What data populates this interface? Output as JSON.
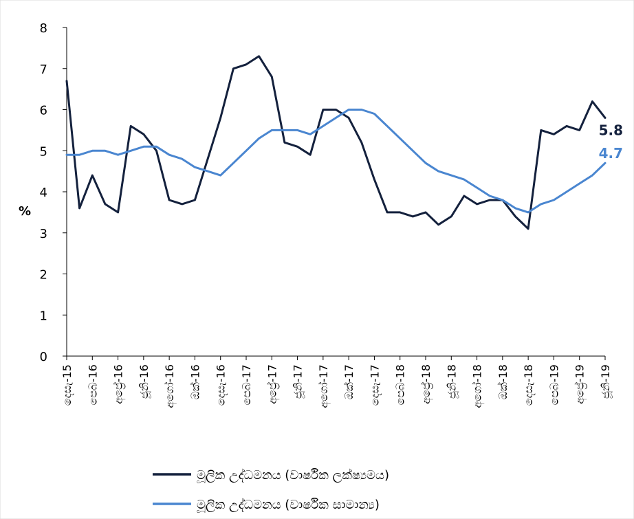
{
  "chart_data": {
    "type": "line",
    "title": "",
    "xlabel": "",
    "ylabel": "%",
    "ylim": [
      0,
      8
    ],
    "yticks": [
      0,
      1,
      2,
      3,
      4,
      5,
      6,
      7,
      8
    ],
    "grid": false,
    "legend_position": "bottom",
    "x_tick_labels": [
      "දෙසැ-15",
      "පෙබ-16",
      "අප්‍රේ-16",
      "ජූනි-16",
      "අගෝ-16",
      "ඔක්-16",
      "දෙසැ-16",
      "පෙබ-17",
      "අප්‍රේ-17",
      "ජූනි-17",
      "අගෝ-17",
      "ඔක්-17",
      "දෙසැ-17",
      "පෙබ-18",
      "අප්‍රේ-18",
      "ජූනි-18",
      "අගෝ-18",
      "ඔක්-18",
      "දෙසැ-18",
      "පෙබ-19",
      "අප්‍රේ-19",
      "ජූනි-19"
    ],
    "series": [
      {
        "name": "මූලික උද්ධමනය (වාර්ෂික ලක්ෂ්‍යමය)",
        "color": "#14213d",
        "end_label": "5.8",
        "values": [
          6.7,
          3.6,
          4.4,
          3.7,
          3.5,
          5.6,
          5.4,
          5.0,
          3.8,
          3.7,
          3.8,
          4.8,
          5.8,
          7.0,
          7.1,
          7.3,
          6.8,
          5.2,
          5.1,
          4.9,
          6.0,
          6.0,
          5.8,
          5.2,
          4.3,
          3.5,
          3.5,
          3.4,
          3.5,
          3.2,
          3.4,
          3.9,
          3.7,
          3.8,
          3.8,
          3.4,
          3.1,
          5.5,
          5.4,
          5.6,
          5.5,
          6.2,
          5.8
        ]
      },
      {
        "name": "මූලික උද්ධමනය (වාර්ෂික සාමාන්‍ය)",
        "color": "#4a86d0",
        "end_label": "4.7",
        "values": [
          4.9,
          4.9,
          5.0,
          5.0,
          4.9,
          5.0,
          5.1,
          5.1,
          4.9,
          4.8,
          4.6,
          4.5,
          4.4,
          4.7,
          5.0,
          5.3,
          5.5,
          5.5,
          5.5,
          5.4,
          5.6,
          5.8,
          6.0,
          6.0,
          5.9,
          5.6,
          5.3,
          5.0,
          4.7,
          4.5,
          4.4,
          4.3,
          4.1,
          3.9,
          3.8,
          3.6,
          3.5,
          3.7,
          3.8,
          4.0,
          4.2,
          4.4,
          4.7
        ]
      }
    ]
  }
}
